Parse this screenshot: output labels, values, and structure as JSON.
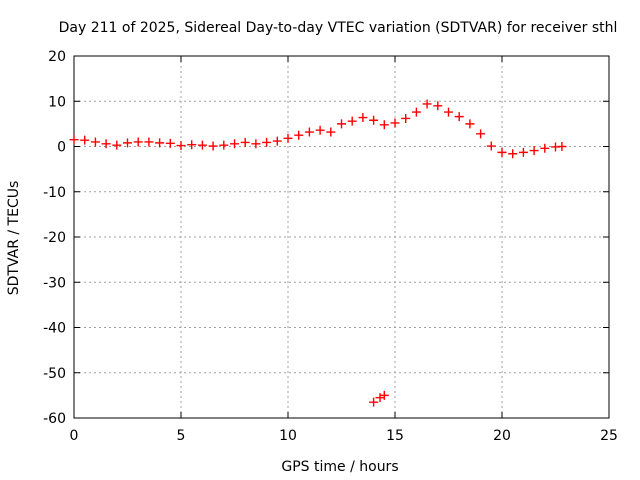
{
  "chart_data": {
    "type": "scatter",
    "title": "Day 211 of 2025, Sidereal Day-to-day VTEC variation (SDTVAR) for receiver sthl",
    "xlabel": "GPS time / hours",
    "ylabel": "SDTVAR / TECUs",
    "xlim": [
      0,
      25
    ],
    "ylim": [
      -60,
      20
    ],
    "xticks": [
      0,
      5,
      10,
      15,
      20,
      25
    ],
    "yticks": [
      -60,
      -50,
      -40,
      -30,
      -20,
      -10,
      0,
      10,
      20
    ],
    "grid": true,
    "marker": "plus",
    "color": "#ff0000",
    "series": [
      {
        "name": "SDTVAR",
        "points": [
          [
            0.0,
            1.5
          ],
          [
            0.5,
            1.4
          ],
          [
            1.0,
            1.0
          ],
          [
            1.5,
            0.6
          ],
          [
            2.0,
            0.3
          ],
          [
            2.5,
            0.8
          ],
          [
            3.0,
            1.0
          ],
          [
            3.5,
            1.0
          ],
          [
            4.0,
            0.8
          ],
          [
            4.5,
            0.7
          ],
          [
            5.0,
            0.2
          ],
          [
            5.5,
            0.4
          ],
          [
            6.0,
            0.3
          ],
          [
            6.5,
            0.1
          ],
          [
            7.0,
            0.3
          ],
          [
            7.5,
            0.6
          ],
          [
            8.0,
            0.9
          ],
          [
            8.5,
            0.6
          ],
          [
            9.0,
            0.9
          ],
          [
            9.5,
            1.2
          ],
          [
            10.0,
            1.8
          ],
          [
            10.5,
            2.5
          ],
          [
            11.0,
            3.2
          ],
          [
            11.5,
            3.6
          ],
          [
            12.0,
            3.2
          ],
          [
            12.5,
            5.0
          ],
          [
            13.0,
            5.6
          ],
          [
            13.5,
            6.4
          ],
          [
            14.0,
            5.8
          ],
          [
            14.5,
            4.8
          ],
          [
            15.0,
            5.2
          ],
          [
            15.5,
            6.2
          ],
          [
            16.0,
            7.6
          ],
          [
            16.5,
            9.4
          ],
          [
            17.0,
            9.0
          ],
          [
            17.5,
            7.6
          ],
          [
            18.0,
            6.6
          ],
          [
            18.5,
            5.0
          ],
          [
            19.0,
            2.8
          ],
          [
            19.5,
            0.1
          ],
          [
            20.0,
            -1.3
          ],
          [
            20.5,
            -1.6
          ],
          [
            21.0,
            -1.3
          ],
          [
            21.5,
            -0.9
          ],
          [
            22.0,
            -0.4
          ],
          [
            22.5,
            -0.1
          ],
          [
            22.8,
            0.0
          ],
          [
            14.0,
            -56.5
          ],
          [
            14.3,
            -55.5
          ],
          [
            14.5,
            -55.0
          ]
        ]
      }
    ]
  }
}
